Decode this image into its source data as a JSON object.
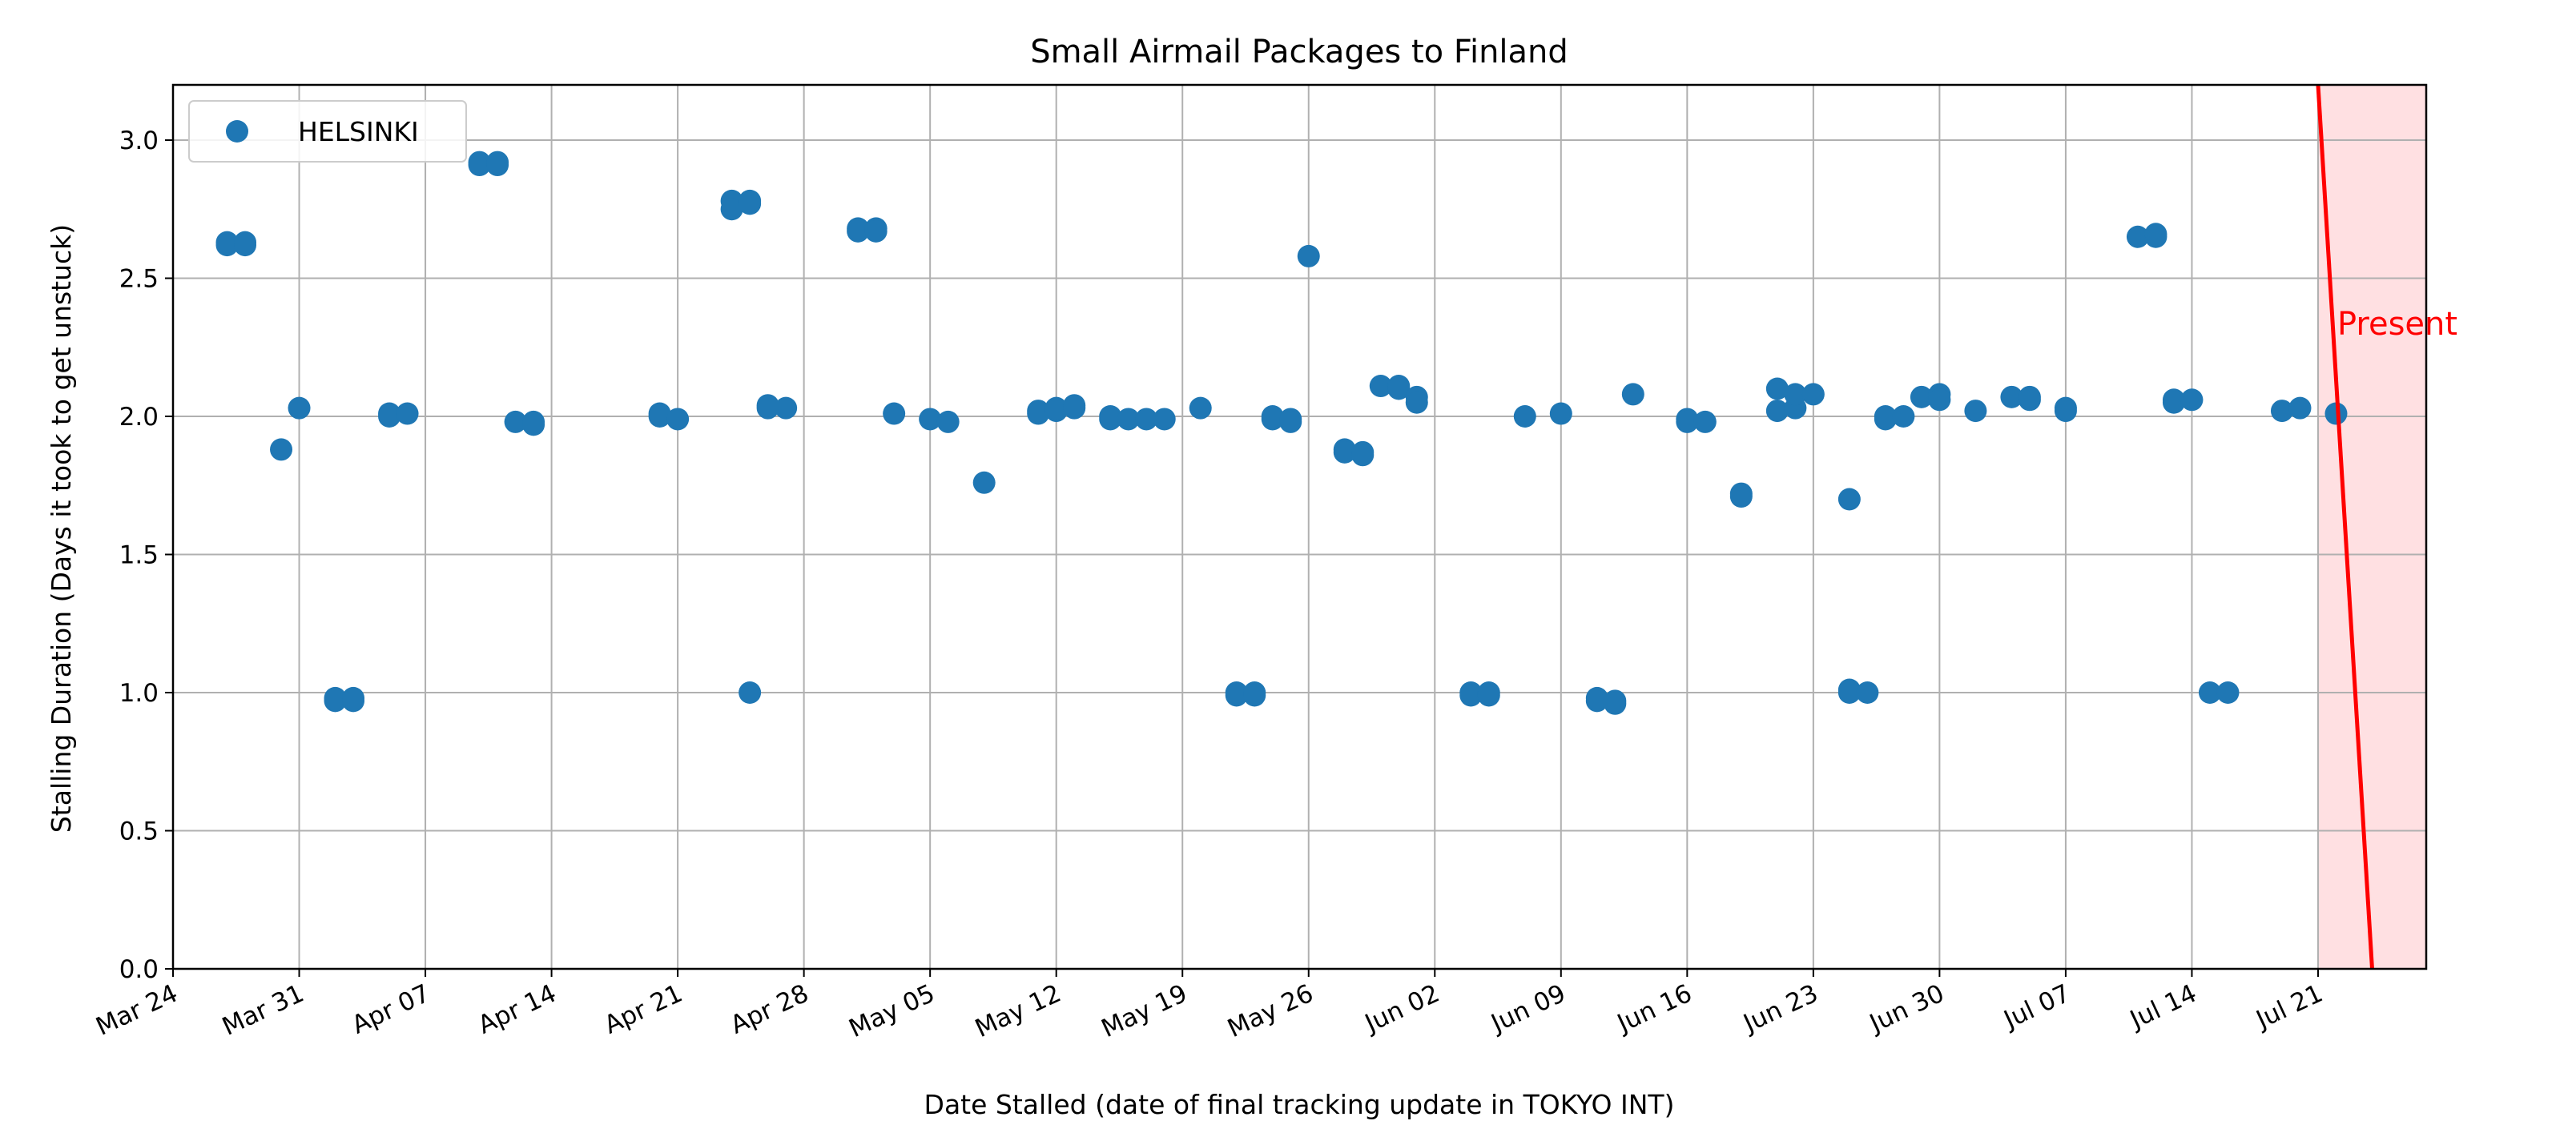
{
  "chart_data": {
    "type": "scatter",
    "title": "Small Airmail Packages to Finland",
    "xlabel": "Date Stalled (date of final tracking update in TOKYO INT)",
    "ylabel": "Stalling Duration (Days it took to get unstuck)",
    "xlim": [
      "2024-03-24",
      "2024-07-27"
    ],
    "ylim": [
      0,
      3.2
    ],
    "x_ticks": [
      "Mar 24",
      "Mar 31",
      "Apr 07",
      "Apr 14",
      "Apr 21",
      "Apr 28",
      "May 05",
      "May 12",
      "May 19",
      "May 26",
      "Jun 02",
      "Jun 09",
      "Jun 16",
      "Jun 23",
      "Jun 30",
      "Jul 07",
      "Jul 14",
      "Jul 21"
    ],
    "y_ticks": [
      "0.0",
      "0.5",
      "1.0",
      "1.5",
      "2.0",
      "2.5",
      "3.0"
    ],
    "grid": true,
    "legend_position": "top-left",
    "marker_color": "#1f77b4",
    "present_color": "#ff0000",
    "present_fill": "#ffe0e2",
    "present_label": "Present",
    "present_line": [
      [
        "2024-07-21",
        3.2
      ],
      [
        "2024-07-24",
        0
      ]
    ],
    "present_span": [
      "2024-07-21",
      "2024-07-27"
    ],
    "series": [
      {
        "name": "HELSINKI",
        "points": [
          [
            "2024-03-27",
            2.63
          ],
          [
            "2024-03-27",
            2.62
          ],
          [
            "2024-03-28",
            2.62
          ],
          [
            "2024-03-28",
            2.63
          ],
          [
            "2024-03-30",
            1.88
          ],
          [
            "2024-03-31",
            2.03
          ],
          [
            "2024-04-02",
            0.97
          ],
          [
            "2024-04-02",
            0.98
          ],
          [
            "2024-04-03",
            0.97
          ],
          [
            "2024-04-03",
            0.98
          ],
          [
            "2024-04-05",
            2.0
          ],
          [
            "2024-04-05",
            2.01
          ],
          [
            "2024-04-06",
            2.01
          ],
          [
            "2024-04-10",
            2.91
          ],
          [
            "2024-04-10",
            2.92
          ],
          [
            "2024-04-11",
            2.91
          ],
          [
            "2024-04-11",
            2.92
          ],
          [
            "2024-04-12",
            1.98
          ],
          [
            "2024-04-13",
            1.97
          ],
          [
            "2024-04-13",
            1.98
          ],
          [
            "2024-04-20",
            2.0
          ],
          [
            "2024-04-20",
            2.01
          ],
          [
            "2024-04-21",
            1.99
          ],
          [
            "2024-04-24",
            2.78
          ],
          [
            "2024-04-24",
            2.75
          ],
          [
            "2024-04-25",
            2.78
          ],
          [
            "2024-04-25",
            2.77
          ],
          [
            "2024-04-25",
            1.0
          ],
          [
            "2024-04-26",
            2.03
          ],
          [
            "2024-04-26",
            2.04
          ],
          [
            "2024-04-27",
            2.03
          ],
          [
            "2024-05-01",
            2.67
          ],
          [
            "2024-05-01",
            2.68
          ],
          [
            "2024-05-02",
            2.68
          ],
          [
            "2024-05-02",
            2.67
          ],
          [
            "2024-05-03",
            2.01
          ],
          [
            "2024-05-05",
            1.99
          ],
          [
            "2024-05-06",
            1.98
          ],
          [
            "2024-05-08",
            1.76
          ],
          [
            "2024-05-11",
            2.01
          ],
          [
            "2024-05-11",
            2.02
          ],
          [
            "2024-05-12",
            2.02
          ],
          [
            "2024-05-12",
            2.03
          ],
          [
            "2024-05-13",
            2.03
          ],
          [
            "2024-05-13",
            2.04
          ],
          [
            "2024-05-15",
            2.0
          ],
          [
            "2024-05-15",
            1.99
          ],
          [
            "2024-05-16",
            1.99
          ],
          [
            "2024-05-17",
            1.99
          ],
          [
            "2024-05-18",
            1.99
          ],
          [
            "2024-05-20",
            2.03
          ],
          [
            "2024-05-22",
            0.99
          ],
          [
            "2024-05-22",
            1.0
          ],
          [
            "2024-05-23",
            0.99
          ],
          [
            "2024-05-23",
            1.0
          ],
          [
            "2024-05-24",
            1.99
          ],
          [
            "2024-05-24",
            2.0
          ],
          [
            "2024-05-25",
            1.99
          ],
          [
            "2024-05-25",
            1.98
          ],
          [
            "2024-05-26",
            2.58
          ],
          [
            "2024-05-28",
            1.88
          ],
          [
            "2024-05-28",
            1.87
          ],
          [
            "2024-05-29",
            1.87
          ],
          [
            "2024-05-29",
            1.86
          ],
          [
            "2024-05-30",
            2.11
          ],
          [
            "2024-05-31",
            2.11
          ],
          [
            "2024-05-31",
            2.1
          ],
          [
            "2024-06-01",
            2.07
          ],
          [
            "2024-06-01",
            2.05
          ],
          [
            "2024-06-04",
            1.0
          ],
          [
            "2024-06-04",
            0.99
          ],
          [
            "2024-06-05",
            1.0
          ],
          [
            "2024-06-05",
            0.99
          ],
          [
            "2024-06-07",
            2.0
          ],
          [
            "2024-06-09",
            2.01
          ],
          [
            "2024-06-11",
            0.97
          ],
          [
            "2024-06-11",
            0.98
          ],
          [
            "2024-06-12",
            0.97
          ],
          [
            "2024-06-12",
            0.96
          ],
          [
            "2024-06-13",
            2.08
          ],
          [
            "2024-06-16",
            1.99
          ],
          [
            "2024-06-16",
            1.98
          ],
          [
            "2024-06-17",
            1.98
          ],
          [
            "2024-06-19",
            1.72
          ],
          [
            "2024-06-19",
            1.71
          ],
          [
            "2024-06-21",
            2.1
          ],
          [
            "2024-06-21",
            2.02
          ],
          [
            "2024-06-22",
            2.03
          ],
          [
            "2024-06-22",
            2.08
          ],
          [
            "2024-06-23",
            2.08
          ],
          [
            "2024-06-25",
            1.7
          ],
          [
            "2024-06-25",
            1.0
          ],
          [
            "2024-06-25",
            1.01
          ],
          [
            "2024-06-26",
            1.0
          ],
          [
            "2024-06-27",
            2.0
          ],
          [
            "2024-06-27",
            1.99
          ],
          [
            "2024-06-28",
            2.0
          ],
          [
            "2024-06-29",
            2.07
          ],
          [
            "2024-06-30",
            2.08
          ],
          [
            "2024-06-30",
            2.06
          ],
          [
            "2024-07-02",
            2.02
          ],
          [
            "2024-07-04",
            2.07
          ],
          [
            "2024-07-05",
            2.06
          ],
          [
            "2024-07-05",
            2.07
          ],
          [
            "2024-07-07",
            2.02
          ],
          [
            "2024-07-07",
            2.03
          ],
          [
            "2024-07-11",
            2.65
          ],
          [
            "2024-07-12",
            2.65
          ],
          [
            "2024-07-12",
            2.66
          ],
          [
            "2024-07-13",
            2.06
          ],
          [
            "2024-07-13",
            2.05
          ],
          [
            "2024-07-14",
            2.06
          ],
          [
            "2024-07-15",
            1.0
          ],
          [
            "2024-07-16",
            1.0
          ],
          [
            "2024-07-19",
            2.02
          ],
          [
            "2024-07-20",
            2.03
          ],
          [
            "2024-07-22",
            2.01
          ]
        ]
      }
    ]
  }
}
